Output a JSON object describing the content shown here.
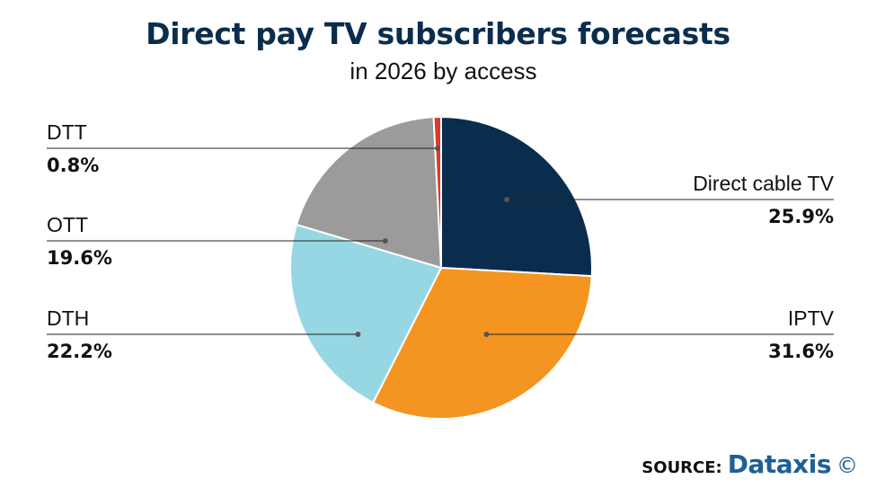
{
  "chart_data": {
    "type": "pie",
    "title": "Direct pay TV subscribers forecasts",
    "subtitle": "in 2026 by access",
    "slices": [
      {
        "label": "Direct cable TV",
        "value": 25.9,
        "value_text": "25.9%",
        "color": "#0b2d4d",
        "side": "right"
      },
      {
        "label": "IPTV",
        "value": 31.6,
        "value_text": "31.6%",
        "color": "#f49521",
        "side": "right"
      },
      {
        "label": "DTH",
        "value": 22.2,
        "value_text": "22.2%",
        "color": "#97d7e4",
        "side": "left"
      },
      {
        "label": "OTT",
        "value": 19.6,
        "value_text": "19.6%",
        "color": "#9b9b9b",
        "side": "left"
      },
      {
        "label": "DTT",
        "value": 0.8,
        "value_text": "0.8%",
        "color": "#e0392b",
        "side": "left"
      }
    ]
  },
  "source": {
    "label": "SOURCE:",
    "brand": "Dataxis",
    "copyright": "©"
  }
}
